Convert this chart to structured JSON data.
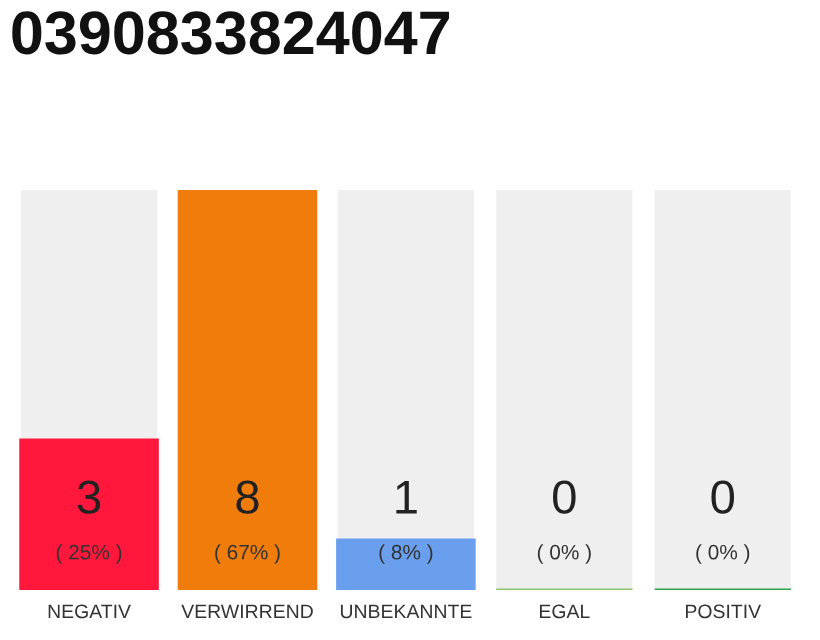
{
  "chart_data": {
    "type": "bar",
    "title": "0390833824047",
    "categories": [
      "NEGATIV",
      "VERWIRREND",
      "UNBEKANNTE",
      "EGAL",
      "POSITIV"
    ],
    "values": [
      3,
      8,
      1,
      0,
      0
    ],
    "colors": [
      "#ff173c",
      "#f07c0c",
      "#6a9fee",
      "#8cc86a",
      "#2ea44f"
    ],
    "ylim": [
      0,
      8
    ],
    "tick_labels": "x",
    "data_labels": true,
    "grid": false,
    "legend": false,
    "annotations": [
      "( 25% )",
      "( 67% )",
      "( 8% )",
      "( 0% )",
      "( 0% )"
    ]
  }
}
